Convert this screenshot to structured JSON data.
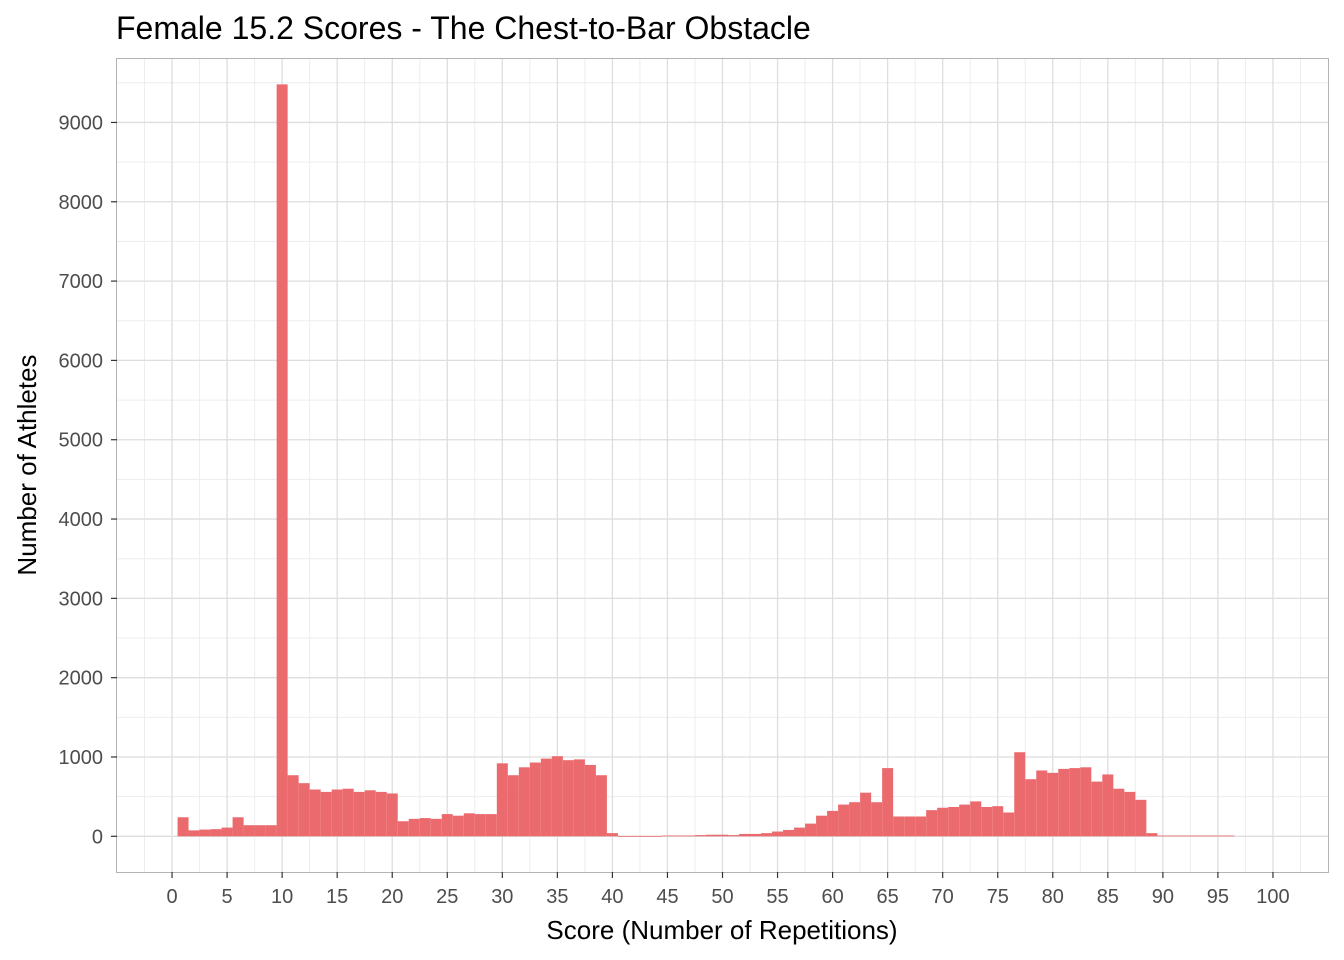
{
  "chart_data": {
    "type": "bar",
    "title": "Female 15.2 Scores - The Chest-to-Bar Obstacle",
    "xlabel": "Score (Number of Repetitions)",
    "ylabel": "Number of Athletes",
    "xlim": [
      -5,
      105
    ],
    "ylim": [
      -450,
      9800
    ],
    "x_ticks": [
      0,
      5,
      10,
      15,
      20,
      25,
      30,
      35,
      40,
      45,
      50,
      55,
      60,
      65,
      70,
      75,
      80,
      85,
      90,
      95,
      100
    ],
    "x_tick_labels": [
      "0",
      "5",
      "10",
      "15",
      "20",
      "25",
      "30",
      "35",
      "40",
      "45",
      "50",
      "55",
      "60",
      "65",
      "70",
      "75",
      "80",
      "85",
      "90",
      "95",
      "100"
    ],
    "y_ticks": [
      0,
      1000,
      2000,
      3000,
      4000,
      5000,
      6000,
      7000,
      8000,
      9000
    ],
    "y_tick_labels": [
      "0",
      "1000",
      "2000",
      "3000",
      "4000",
      "5000",
      "6000",
      "7000",
      "8000",
      "9000"
    ],
    "grid": true,
    "bar_color": "#EB6A6E",
    "series": [
      {
        "x": [
          1,
          2,
          3,
          4,
          5,
          6,
          7,
          8,
          9,
          10,
          11,
          12,
          13,
          14,
          15,
          16,
          17,
          18,
          19,
          20,
          21,
          22,
          23,
          24,
          25,
          26,
          27,
          28,
          29,
          30,
          31,
          32,
          33,
          34,
          35,
          36,
          37,
          38,
          39,
          40,
          41,
          42,
          43,
          44,
          45,
          46,
          47,
          48,
          49,
          50,
          51,
          52,
          53,
          54,
          55,
          56,
          57,
          58,
          59,
          60,
          61,
          62,
          63,
          64,
          65,
          66,
          67,
          68,
          69,
          70,
          71,
          72,
          73,
          74,
          75,
          76,
          77,
          78,
          79,
          80,
          81,
          82,
          83,
          84,
          85,
          86,
          87,
          88,
          89,
          90,
          91,
          92,
          93,
          94,
          95,
          96
        ],
        "values": [
          240,
          75,
          85,
          90,
          110,
          240,
          140,
          140,
          140,
          9480,
          770,
          670,
          590,
          560,
          590,
          600,
          560,
          580,
          560,
          540,
          190,
          220,
          230,
          220,
          280,
          260,
          290,
          280,
          280,
          920,
          770,
          870,
          930,
          980,
          1010,
          960,
          970,
          900,
          770,
          40,
          5,
          5,
          5,
          5,
          10,
          10,
          10,
          15,
          20,
          20,
          15,
          30,
          30,
          40,
          60,
          80,
          110,
          160,
          260,
          320,
          400,
          430,
          550,
          430,
          860,
          250,
          250,
          250,
          330,
          360,
          370,
          400,
          440,
          370,
          380,
          300,
          1060,
          720,
          830,
          800,
          850,
          860,
          870,
          690,
          780,
          600,
          560,
          460,
          40,
          10,
          10,
          10,
          10,
          10,
          10,
          10
        ]
      }
    ]
  }
}
